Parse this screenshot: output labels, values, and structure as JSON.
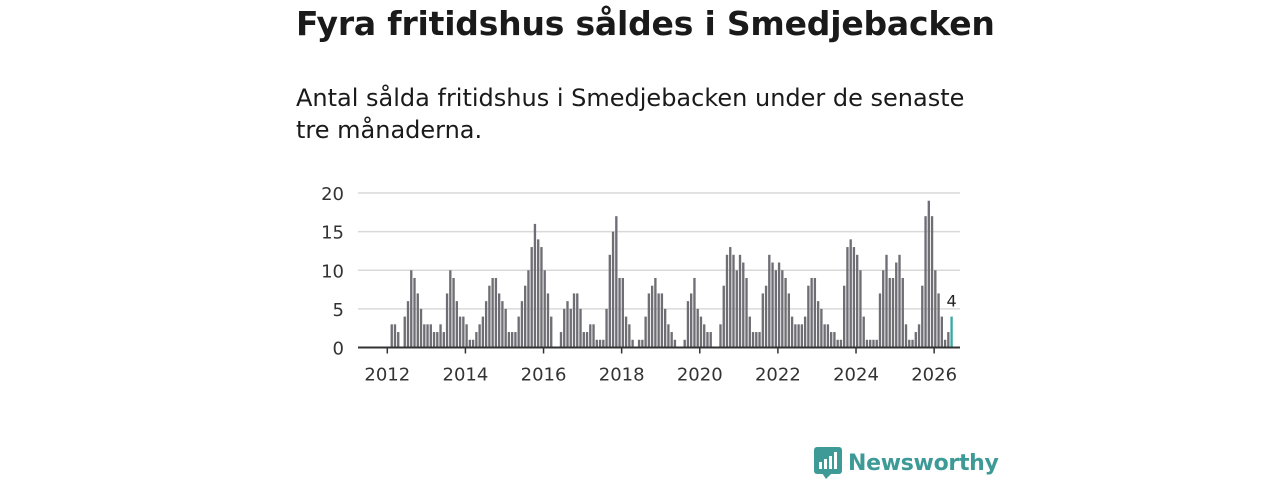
{
  "header": {
    "title": "Fyra fritidshus såldes i Smedjebacken",
    "subtitle": "Antal sålda fritidshus i Smedjebacken under de senaste tre månaderna."
  },
  "brand": {
    "name": "Newsworthy",
    "icon": "newsworthy-logo-icon",
    "color": "#3d9a96"
  },
  "chart_data": {
    "type": "bar",
    "title": "Fyra fritidshus såldes i Smedjebacken",
    "xlabel": "",
    "ylabel": "",
    "ylim": [
      0,
      20
    ],
    "yticks": [
      0,
      5,
      10,
      15,
      20
    ],
    "xticks": [
      "2012",
      "2014",
      "2016",
      "2018",
      "2020",
      "2022",
      "2024",
      "2026"
    ],
    "start": "2012-01",
    "values": [
      0,
      3,
      3,
      2,
      0,
      4,
      6,
      10,
      9,
      7,
      5,
      3,
      3,
      3,
      2,
      2,
      3,
      2,
      7,
      10,
      9,
      6,
      4,
      4,
      3,
      1,
      1,
      2,
      3,
      4,
      6,
      8,
      9,
      9,
      7,
      6,
      5,
      2,
      2,
      2,
      4,
      6,
      8,
      10,
      13,
      16,
      14,
      13,
      10,
      7,
      4,
      0,
      0,
      2,
      5,
      6,
      5,
      7,
      7,
      5,
      2,
      2,
      3,
      3,
      1,
      1,
      1,
      5,
      12,
      15,
      17,
      9,
      9,
      4,
      3,
      1,
      0,
      1,
      1,
      4,
      7,
      8,
      9,
      7,
      7,
      5,
      3,
      2,
      1,
      0,
      0,
      1,
      6,
      7,
      9,
      5,
      4,
      3,
      2,
      2,
      0,
      0,
      3,
      8,
      12,
      13,
      12,
      10,
      12,
      11,
      9,
      4,
      2,
      2,
      2,
      7,
      8,
      12,
      11,
      10,
      11,
      10,
      9,
      7,
      4,
      3,
      3,
      3,
      4,
      8,
      9,
      9,
      6,
      5,
      3,
      3,
      2,
      2,
      1,
      1,
      8,
      13,
      14,
      13,
      12,
      10,
      4,
      1,
      1,
      1,
      1,
      7,
      10,
      12,
      9,
      9,
      11,
      12,
      9,
      3,
      1,
      1,
      2,
      3,
      8,
      17,
      19,
      17,
      10,
      7,
      4,
      1,
      2,
      4
    ],
    "highlight_label": "4",
    "colors": {
      "bar": "#6f6e74",
      "highlight": "#3aa9a4",
      "grid": "#d9d9d9",
      "axis": "#333333",
      "text": "#333333"
    }
  }
}
